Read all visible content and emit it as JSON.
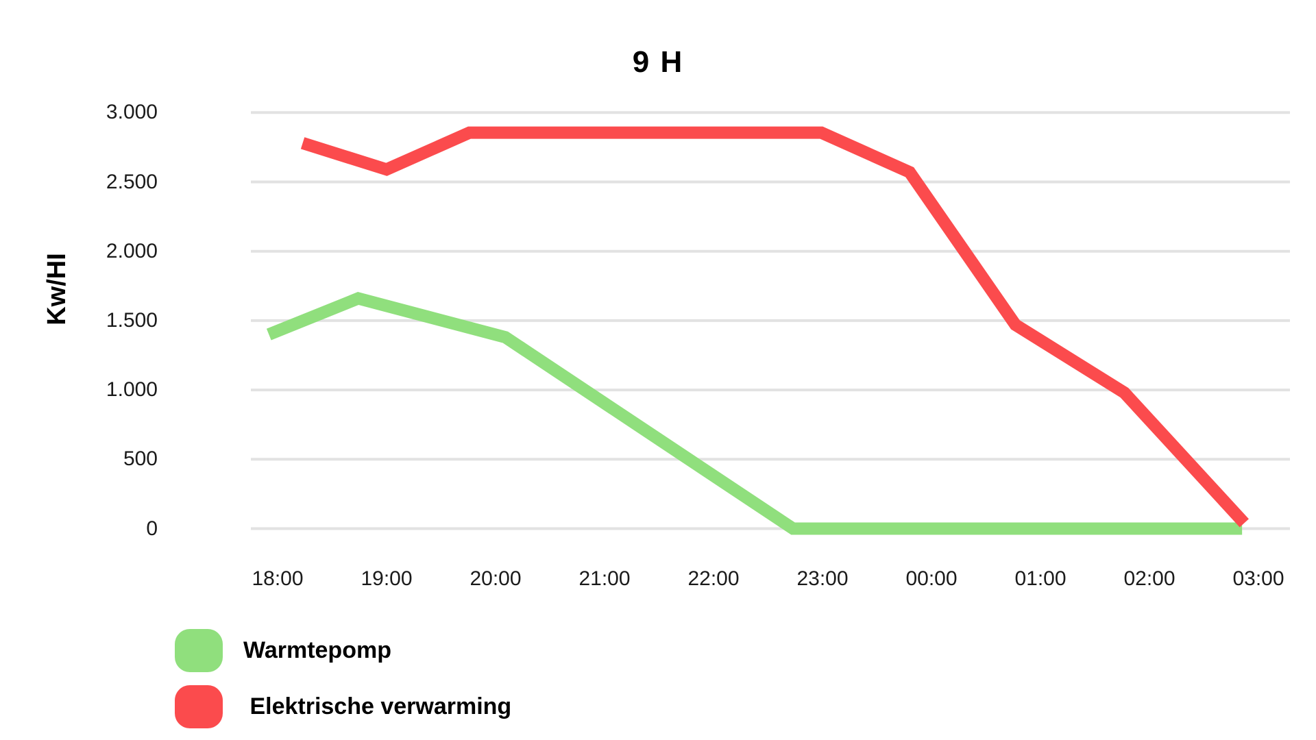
{
  "title": "9 H",
  "legend": {
    "items": [
      {
        "label": "Warmtepomp",
        "color": "#90df7d"
      },
      {
        "label": " Elektrische verwarming",
        "color": "#fb4b4d"
      }
    ]
  },
  "chart_data": {
    "type": "line",
    "title": "9 H",
    "xlabel": "",
    "ylabel": "Kw/HI",
    "ylim": [
      0,
      3000
    ],
    "grid": "horizontal",
    "legend_position": "bottom-left",
    "x_unit": "hours offset from 18:00",
    "x_ticks": [
      "18:00",
      "19:00",
      "20:00",
      "21:00",
      "22:00",
      "23:00",
      "00:00",
      "01:00",
      "02:00",
      "03:00"
    ],
    "y_ticks": [
      {
        "value": 0,
        "label": "0"
      },
      {
        "value": 500,
        "label": "500"
      },
      {
        "value": 1000,
        "label": "1.000"
      },
      {
        "value": 1500,
        "label": "1.500"
      },
      {
        "value": 2000,
        "label": "2.000"
      },
      {
        "value": 2500,
        "label": "2.500"
      },
      {
        "value": 3000,
        "label": "3.000"
      }
    ],
    "series": [
      {
        "name": "Warmtepomp",
        "color": "#90df7d",
        "stroke_width": 18,
        "points": [
          {
            "t": -0.08,
            "v": 1400
          },
          {
            "t": 0.74,
            "v": 1660
          },
          {
            "t": 2.09,
            "v": 1380
          },
          {
            "t": 4.73,
            "v": 0
          },
          {
            "t": 8.85,
            "v": 0
          }
        ]
      },
      {
        "name": "Elektrische verwarming",
        "color": "#fb4b4d",
        "stroke_width": 18,
        "points": [
          {
            "t": 0.23,
            "v": 2780
          },
          {
            "t": 1.0,
            "v": 2590
          },
          {
            "t": 1.76,
            "v": 2855
          },
          {
            "t": 4.99,
            "v": 2855
          },
          {
            "t": 5.8,
            "v": 2570
          },
          {
            "t": 6.77,
            "v": 1470
          },
          {
            "t": 7.77,
            "v": 980
          },
          {
            "t": 8.87,
            "v": 40
          }
        ]
      }
    ]
  }
}
